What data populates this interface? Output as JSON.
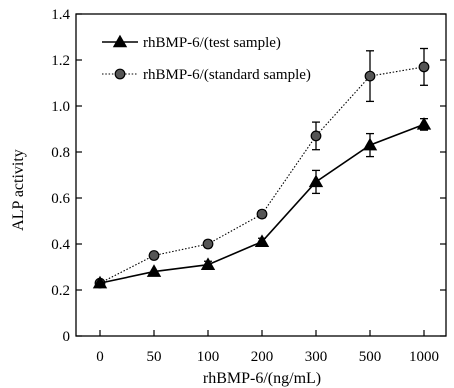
{
  "chart_data": {
    "type": "line",
    "categories": [
      "0",
      "50",
      "100",
      "200",
      "300",
      "500",
      "1000"
    ],
    "xlabel": "rhBMP-6/(ng/mL)",
    "ylabel": "ALP activity",
    "ylim": [
      0,
      1.4
    ],
    "yticks": [
      "0",
      "0.2",
      "0.4",
      "0.6",
      "0.8",
      "1.0",
      "1.2",
      "1.4"
    ],
    "grid": false,
    "legend_position": "top-left",
    "series": [
      {
        "name": "rhBMP-6/(test sample)",
        "marker": "triangle",
        "line_style": "solid",
        "color": "#000000",
        "values": [
          0.23,
          0.28,
          0.31,
          0.41,
          0.67,
          0.83,
          0.92
        ],
        "errors": [
          0.01,
          0.01,
          0.015,
          0.015,
          0.05,
          0.05,
          0.025
        ]
      },
      {
        "name": "rhBMP-6/(standard sample)",
        "marker": "circle",
        "line_style": "dotted",
        "color": "#000000",
        "values": [
          0.23,
          0.35,
          0.4,
          0.53,
          0.87,
          1.13,
          1.17
        ],
        "errors": [
          0.01,
          0.01,
          0.015,
          0.015,
          0.06,
          0.11,
          0.08
        ]
      }
    ]
  }
}
